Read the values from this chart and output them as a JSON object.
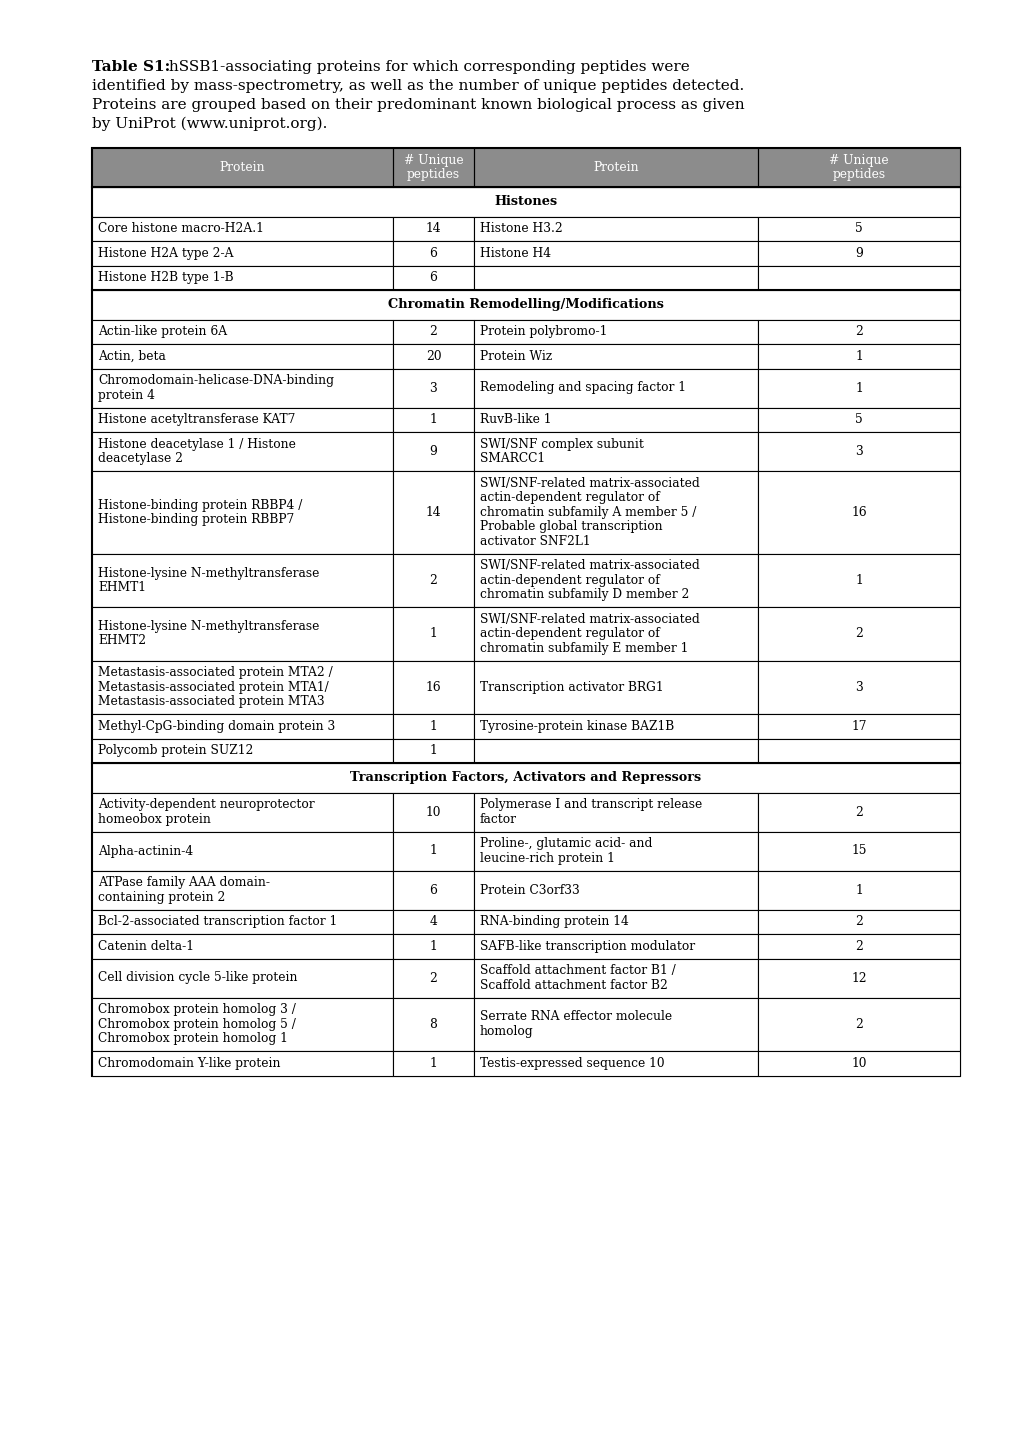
{
  "caption_bold": "Table S1:",
  "caption_normal": " hSSB1-associating proteins for which corresponding peptides were\nidentified by mass-spectrometry, as well as the number of unique peptides detected.\nProteins are grouped based on their predominant known biological process as given\nby UniProt (www.uniprot.org).",
  "header_bg": "#8c8c8c",
  "col_headers": [
    "Protein",
    "# Unique\npeptides",
    "Protein",
    "# Unique\npeptides"
  ],
  "sections": [
    {
      "title": "Histones",
      "rows": [
        [
          "Core histone macro-H2A.1",
          "14",
          "Histone H3.2",
          "5"
        ],
        [
          "Histone H2A type 2-A",
          "6",
          "Histone H4",
          "9"
        ],
        [
          "Histone H2B type 1-B",
          "6",
          "",
          ""
        ]
      ]
    },
    {
      "title": "Chromatin Remodelling/Modifications",
      "rows": [
        [
          "Actin-like protein 6A",
          "2",
          "Protein polybromo-1",
          "2"
        ],
        [
          "Actin, beta",
          "20",
          "Protein Wiz",
          "1"
        ],
        [
          "Chromodomain-helicase-DNA-binding\nprotein 4",
          "3",
          "Remodeling and spacing factor 1",
          "1"
        ],
        [
          "Histone acetyltransferase KAT7",
          "1",
          "RuvB-like 1",
          "5"
        ],
        [
          "Histone deacetylase 1 / Histone\ndeacetylase 2",
          "9",
          "SWI/SNF complex subunit\nSMARCC1",
          "3"
        ],
        [
          "Histone-binding protein RBBP4 /\nHistone-binding protein RBBP7",
          "14",
          "SWI/SNF-related matrix-associated\nactin-dependent regulator of\nchromatin subfamily A member 5 /\nProbable global transcription\nactivator SNF2L1",
          "16"
        ],
        [
          "Histone-lysine N-methyltransferase\nEHMT1",
          "2",
          "SWI/SNF-related matrix-associated\nactin-dependent regulator of\nchromatin subfamily D member 2",
          "1"
        ],
        [
          "Histone-lysine N-methyltransferase\nEHMT2",
          "1",
          "SWI/SNF-related matrix-associated\nactin-dependent regulator of\nchromatin subfamily E member 1",
          "2"
        ],
        [
          "Metastasis-associated protein MTA2 /\nMetastasis-associated protein MTA1/\nMetastasis-associated protein MTA3",
          "16",
          "Transcription activator BRG1",
          "3"
        ],
        [
          "Methyl-CpG-binding domain protein 3",
          "1",
          "Tyrosine-protein kinase BAZ1B",
          "17"
        ],
        [
          "Polycomb protein SUZ12",
          "1",
          "",
          ""
        ]
      ]
    },
    {
      "title": "Transcription Factors, Activators and Repressors",
      "rows": [
        [
          "Activity-dependent neuroprotector\nhomeobox protein",
          "10",
          "Polymerase I and transcript release\nfactor",
          "2"
        ],
        [
          "Alpha-actinin-4",
          "1",
          "Proline-, glutamic acid- and\nleucine-rich protein 1",
          "15"
        ],
        [
          "ATPase family AAA domain-\ncontaining protein 2",
          "6",
          "Protein C3orf33",
          "1"
        ],
        [
          "Bcl-2-associated transcription factor 1",
          "4",
          "RNA-binding protein 14",
          "2"
        ],
        [
          "Catenin delta-1",
          "1",
          "SAFB-like transcription modulator",
          "2"
        ],
        [
          "Cell division cycle 5-like protein",
          "2",
          "Scaffold attachment factor B1 /\nScaffold attachment factor B2",
          "12"
        ],
        [
          "Chromobox protein homolog 3 /\nChromobox protein homolog 5 /\nChromobox protein homolog 1",
          "8",
          "Serrate RNA effector molecule\nhomolog",
          "2"
        ],
        [
          "Chromodomain Y-like protein",
          "1",
          "Testis-expressed sequence 10",
          "10"
        ]
      ]
    }
  ],
  "figsize": [
    10.2,
    14.43
  ],
  "dpi": 100
}
